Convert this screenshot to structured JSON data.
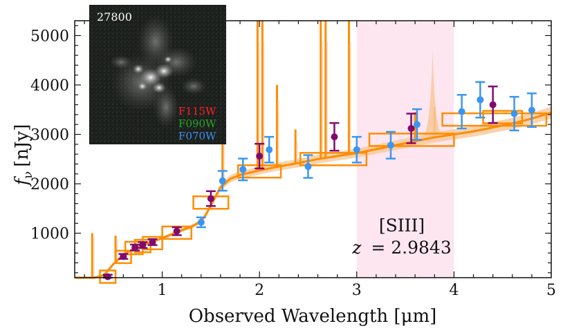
{
  "chart_data": {
    "type": "scatter",
    "xlabel": "Observed Wavelength [μm]",
    "ylabel_symbol": "f",
    "ylabel_subscript": "ν",
    "ylabel_unit": "[nJy]",
    "xlim": [
      0.1,
      5.0
    ],
    "ylim": [
      100,
      5300
    ],
    "x_ticks": [
      1,
      2,
      3,
      4,
      5
    ],
    "y_ticks": [
      1000,
      2000,
      3000,
      4000,
      5000
    ],
    "highlight_region": {
      "x_range": [
        3.0,
        4.0
      ],
      "color": "#fde6f0"
    },
    "annotation_line": "[SIII]",
    "annotation_redshift_symbol": "z",
    "annotation_redshift_value": "= 2.9843",
    "inset": {
      "object_id": "27800",
      "filters": [
        {
          "name": "F115W",
          "color": "#ff2020"
        },
        {
          "name": "F090W",
          "color": "#22aa22"
        },
        {
          "name": "F070W",
          "color": "#3a8ff0"
        }
      ]
    },
    "colors": {
      "model": "#ff8c00",
      "model_band": "#f8c89a",
      "photometry_purple": "#800a6e",
      "photometry_blue": "#3a96f0"
    },
    "series": [
      {
        "marker": "purple",
        "points": [
          {
            "x": 0.44,
            "y": 120,
            "yerr": 40
          },
          {
            "x": 0.6,
            "y": 530,
            "yerr": 50
          },
          {
            "x": 0.72,
            "y": 710,
            "yerr": 60
          },
          {
            "x": 0.8,
            "y": 760,
            "yerr": 60
          },
          {
            "x": 0.9,
            "y": 820,
            "yerr": 60
          },
          {
            "x": 1.15,
            "y": 1040,
            "yerr": 80
          },
          {
            "x": 1.5,
            "y": 1700,
            "yerr": 150
          },
          {
            "x": 2.0,
            "y": 2560,
            "yerr": 250
          },
          {
            "x": 2.77,
            "y": 2950,
            "yerr": 280
          },
          {
            "x": 3.56,
            "y": 3120,
            "yerr": 300
          },
          {
            "x": 4.4,
            "y": 3600,
            "yerr": 370
          }
        ]
      },
      {
        "marker": "blue",
        "points": [
          {
            "x": 1.4,
            "y": 1220,
            "yerr": 100
          },
          {
            "x": 1.62,
            "y": 2060,
            "yerr": 200
          },
          {
            "x": 1.83,
            "y": 2290,
            "yerr": 220
          },
          {
            "x": 2.1,
            "y": 2690,
            "yerr": 260
          },
          {
            "x": 2.5,
            "y": 2350,
            "yerr": 230
          },
          {
            "x": 3.0,
            "y": 2690,
            "yerr": 260
          },
          {
            "x": 3.35,
            "y": 2780,
            "yerr": 270
          },
          {
            "x": 3.62,
            "y": 3200,
            "yerr": 310
          },
          {
            "x": 4.08,
            "y": 3460,
            "yerr": 340
          },
          {
            "x": 4.27,
            "y": 3700,
            "yerr": 360
          },
          {
            "x": 4.62,
            "y": 3420,
            "yerr": 340
          },
          {
            "x": 4.8,
            "y": 3490,
            "yerr": 340
          }
        ]
      }
    ],
    "model_bandpasses": [
      {
        "x": [
          0.36,
          0.52
        ],
        "y": 120
      },
      {
        "x": [
          0.52,
          0.68
        ],
        "y": 520
      },
      {
        "x": [
          0.62,
          0.8
        ],
        "y": 700
      },
      {
        "x": [
          0.72,
          0.88
        ],
        "y": 740
      },
      {
        "x": [
          0.8,
          1.0
        ],
        "y": 800
      },
      {
        "x": [
          1.0,
          1.3
        ],
        "y": 1010
      },
      {
        "x": [
          1.32,
          1.68
        ],
        "y": 1620
      },
      {
        "x": [
          1.78,
          2.22
        ],
        "y": 2250
      },
      {
        "x": [
          2.42,
          3.1
        ],
        "y": 2500
      },
      {
        "x": [
          3.13,
          4.0
        ],
        "y": 2890
      },
      {
        "x": [
          3.88,
          4.95
        ],
        "y": 3300
      },
      {
        "x": [
          4.3,
          4.7
        ],
        "y": 3350
      }
    ],
    "model_continuum": {
      "x": [
        0.1,
        0.3,
        0.4,
        0.5,
        0.6,
        0.7,
        0.8,
        0.9,
        1.0,
        1.1,
        1.2,
        1.3,
        1.4,
        1.45,
        1.5,
        1.55,
        1.6,
        1.7,
        1.8,
        2.0,
        2.2,
        2.4,
        2.6,
        2.8,
        3.0,
        3.2,
        3.4,
        3.6,
        3.8,
        4.0,
        4.2,
        4.4,
        4.6,
        4.8,
        5.0
      ],
      "y": [
        0,
        80,
        150,
        380,
        560,
        680,
        760,
        830,
        900,
        980,
        1060,
        1130,
        1240,
        1380,
        1560,
        1750,
        1930,
        2100,
        2180,
        2270,
        2350,
        2420,
        2500,
        2560,
        2620,
        2700,
        2780,
        2860,
        2940,
        3000,
        3060,
        3140,
        3220,
        3320,
        3440
      ]
    },
    "model_lines": [
      {
        "x": 0.52,
        "y": 950
      },
      {
        "x": 1.62,
        "y": 5300
      },
      {
        "x": 1.98,
        "y": 5300
      },
      {
        "x": 2.03,
        "y": 5300
      },
      {
        "x": 2.18,
        "y": 4000
      },
      {
        "x": 2.37,
        "y": 3100
      },
      {
        "x": 2.63,
        "y": 5300
      },
      {
        "x": 2.68,
        "y": 5300
      },
      {
        "x": 2.92,
        "y": 5300
      },
      {
        "x": 3.6,
        "y": 3450
      },
      {
        "x": 3.8,
        "y": 3550
      },
      {
        "x": 0.28,
        "y": 1000
      }
    ],
    "model_broad_feature": {
      "x": 3.78,
      "y": 4700
    }
  }
}
